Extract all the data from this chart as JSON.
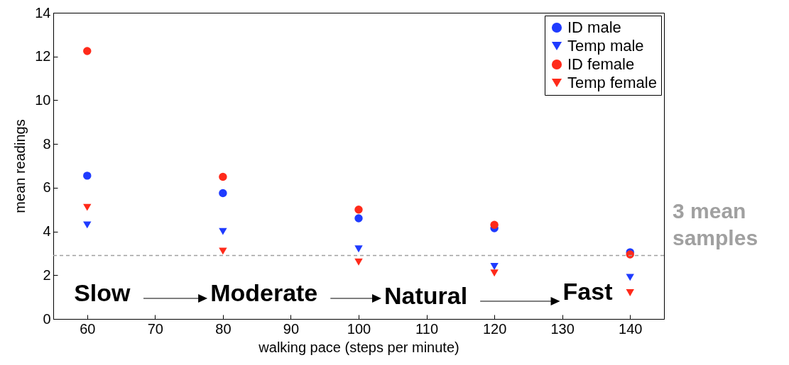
{
  "chart_data": {
    "type": "scatter",
    "xlabel": "walking pace (steps per minute)",
    "ylabel": "mean readings",
    "x": [
      60,
      80,
      100,
      120,
      140
    ],
    "series": [
      {
        "name": "ID male",
        "color": "#1f3bff",
        "marker": "circle",
        "values": [
          6.55,
          5.75,
          4.6,
          4.15,
          3.05
        ]
      },
      {
        "name": "Temp male",
        "color": "#1f3bff",
        "marker": "triangle",
        "values": [
          4.3,
          4.0,
          3.2,
          2.4,
          1.9
        ]
      },
      {
        "name": "ID female",
        "color": "#ff2a1a",
        "marker": "circle",
        "values": [
          12.25,
          6.5,
          5.0,
          4.3,
          2.95
        ]
      },
      {
        "name": "Temp female",
        "color": "#ff2a1a",
        "marker": "triangle",
        "values": [
          5.1,
          3.1,
          2.6,
          2.1,
          1.2
        ]
      }
    ],
    "xlim": [
      55,
      145
    ],
    "xticks": [
      60,
      70,
      80,
      90,
      100,
      110,
      120,
      130,
      140
    ],
    "ylim": [
      0,
      14
    ],
    "yticks": [
      0,
      2,
      4,
      6,
      8,
      10,
      12,
      14
    ],
    "grid": false,
    "legend": "top right",
    "ref_lines": [
      {
        "axis": "y",
        "value": 2.9,
        "label": "3 mean samples",
        "color": "#a0a0a0",
        "line_style": "dashed"
      }
    ],
    "annotations": [
      "Slow",
      "Moderate",
      "Natural",
      "Fast"
    ]
  }
}
